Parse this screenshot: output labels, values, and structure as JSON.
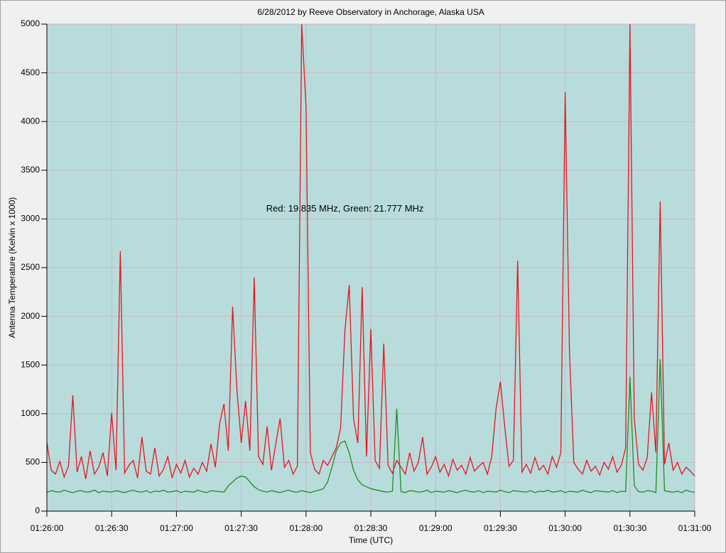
{
  "chart_data": {
    "type": "line",
    "title": "6/28/2012  by  Reeve Observatory  in  Anchorage, Alaska  USA",
    "x_label": "Time (UTC)",
    "y_label": "Antenna Temperature (Kelvin x 1000)",
    "annotation": {
      "text": "Red: 19.835 MHz, Green: 21.777 MHz",
      "x": 138,
      "y": 3100
    },
    "x": [
      0,
      2,
      4,
      6,
      8,
      10,
      12,
      14,
      16,
      18,
      20,
      22,
      24,
      26,
      28,
      30,
      32,
      34,
      36,
      38,
      40,
      42,
      44,
      46,
      48,
      50,
      52,
      54,
      56,
      58,
      60,
      62,
      64,
      66,
      68,
      70,
      72,
      74,
      76,
      78,
      80,
      82,
      84,
      86,
      88,
      90,
      92,
      94,
      96,
      98,
      100,
      102,
      104,
      106,
      108,
      110,
      112,
      114,
      116,
      118,
      120,
      122,
      124,
      126,
      128,
      130,
      132,
      134,
      136,
      138,
      140,
      142,
      144,
      146,
      148,
      150,
      152,
      154,
      156,
      158,
      160,
      162,
      164,
      166,
      168,
      170,
      172,
      174,
      176,
      178,
      180,
      182,
      184,
      186,
      188,
      190,
      192,
      194,
      196,
      198,
      200,
      202,
      204,
      206,
      208,
      210,
      212,
      214,
      216,
      218,
      220,
      222,
      224,
      226,
      228,
      230,
      232,
      234,
      236,
      238,
      240,
      242,
      244,
      246,
      248,
      250,
      252,
      254,
      256,
      258,
      260,
      262,
      264,
      266,
      268,
      270,
      272,
      274,
      276,
      278,
      280,
      282,
      284,
      286,
      288,
      290,
      292,
      294,
      296,
      298,
      300
    ],
    "series": [
      {
        "name": "Red",
        "color": "#e6141e",
        "values": [
          700,
          420,
          380,
          510,
          350,
          460,
          1190,
          400,
          560,
          330,
          620,
          380,
          450,
          600,
          360,
          1010,
          420,
          2670,
          390,
          470,
          520,
          340,
          760,
          410,
          380,
          650,
          360,
          430,
          560,
          340,
          480,
          390,
          520,
          350,
          440,
          380,
          500,
          410,
          690,
          450,
          900,
          1100,
          620,
          2100,
          1250,
          700,
          1130,
          620,
          2400,
          560,
          480,
          870,
          420,
          690,
          950,
          450,
          520,
          380,
          460,
          5000,
          4150,
          600,
          430,
          380,
          520,
          470,
          560,
          650,
          850,
          1850,
          2320,
          950,
          700,
          2300,
          560,
          1870,
          520,
          440,
          1720,
          470,
          390,
          520,
          450,
          380,
          600,
          410,
          500,
          760,
          380,
          450,
          560,
          400,
          480,
          360,
          530,
          420,
          470,
          380,
          550,
          410,
          460,
          500,
          380,
          560,
          1050,
          1330,
          870,
          460,
          520,
          2570,
          400,
          480,
          390,
          550,
          420,
          470,
          380,
          560,
          450,
          600,
          4300,
          1630,
          500,
          430,
          380,
          520,
          410,
          460,
          370,
          500,
          430,
          560,
          400,
          470,
          650,
          5000,
          950,
          480,
          420,
          550,
          1220,
          600,
          3180,
          480,
          700,
          420,
          500,
          380,
          450,
          410,
          360
        ]
      },
      {
        "name": "Green",
        "color": "#1e8c1e",
        "values": [
          190,
          210,
          200,
          195,
          215,
          200,
          190,
          205,
          210,
          195,
          200,
          215,
          190,
          205,
          200,
          195,
          210,
          200,
          190,
          205,
          215,
          200,
          195,
          210,
          190,
          205,
          200,
          215,
          195,
          200,
          210,
          190,
          205,
          200,
          195,
          215,
          200,
          190,
          210,
          205,
          200,
          195,
          260,
          300,
          340,
          360,
          350,
          300,
          250,
          220,
          205,
          195,
          210,
          200,
          190,
          205,
          215,
          200,
          195,
          210,
          200,
          190,
          205,
          215,
          230,
          300,
          450,
          620,
          700,
          720,
          600,
          420,
          320,
          270,
          250,
          230,
          220,
          210,
          200,
          195,
          205,
          1050,
          200,
          190,
          210,
          205,
          195,
          200,
          215,
          190,
          205,
          200,
          195,
          210,
          200,
          190,
          205,
          215,
          200,
          195,
          210,
          190,
          205,
          200,
          195,
          215,
          200,
          190,
          210,
          205,
          200,
          195,
          210,
          190,
          205,
          200,
          215,
          195,
          200,
          210,
          190,
          205,
          200,
          195,
          215,
          200,
          190,
          210,
          205,
          200,
          195,
          210,
          190,
          205,
          200,
          1380,
          260,
          200,
          195,
          210,
          205,
          190,
          1560,
          210,
          200,
          195,
          205,
          190,
          215,
          200,
          195
        ]
      }
    ],
    "xlim": [
      0,
      300
    ],
    "xticks": [
      {
        "value": 0,
        "label": "01:26:00"
      },
      {
        "value": 30,
        "label": "01:26:30"
      },
      {
        "value": 60,
        "label": "01:27:00"
      },
      {
        "value": 90,
        "label": "01:27:30"
      },
      {
        "value": 120,
        "label": "01:28:00"
      },
      {
        "value": 150,
        "label": "01:28:30"
      },
      {
        "value": 180,
        "label": "01:29:00"
      },
      {
        "value": 210,
        "label": "01:29:30"
      },
      {
        "value": 240,
        "label": "01:30:00"
      },
      {
        "value": 270,
        "label": "01:30:30"
      },
      {
        "value": 300,
        "label": "01:31:00"
      }
    ],
    "ylim": [
      0,
      5000
    ],
    "yticks": [
      0,
      500,
      1000,
      1500,
      2000,
      2500,
      3000,
      3500,
      4000,
      4500,
      5000
    ],
    "grid": true
  }
}
